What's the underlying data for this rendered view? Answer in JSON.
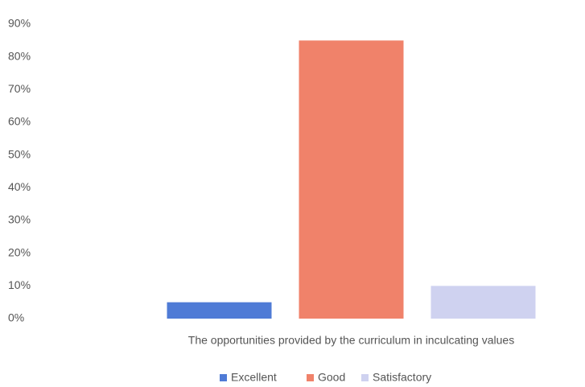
{
  "chart_data": {
    "type": "bar",
    "categories": [
      "The opportunities provided by the curriculum in inculcating values"
    ],
    "series": [
      {
        "name": "Excellent",
        "color": "#4f7bd6",
        "values": [
          5
        ]
      },
      {
        "name": "Good",
        "color": "#f0826a",
        "values": [
          85
        ]
      },
      {
        "name": "Satisfactory",
        "color": "#cfd2f0",
        "values": [
          10
        ]
      }
    ],
    "ylim": [
      0,
      90
    ],
    "yticks": [
      {
        "value": 0,
        "label": "0%"
      },
      {
        "value": 10,
        "label": "10%"
      },
      {
        "value": 20,
        "label": "20%"
      },
      {
        "value": 30,
        "label": "30%"
      },
      {
        "value": 40,
        "label": "40%"
      },
      {
        "value": 50,
        "label": "50%"
      },
      {
        "value": 60,
        "label": "60%"
      },
      {
        "value": 70,
        "label": "70%"
      },
      {
        "value": 80,
        "label": "80%"
      },
      {
        "value": 90,
        "label": "90%"
      }
    ],
    "grid": false,
    "legend": "bottom"
  }
}
